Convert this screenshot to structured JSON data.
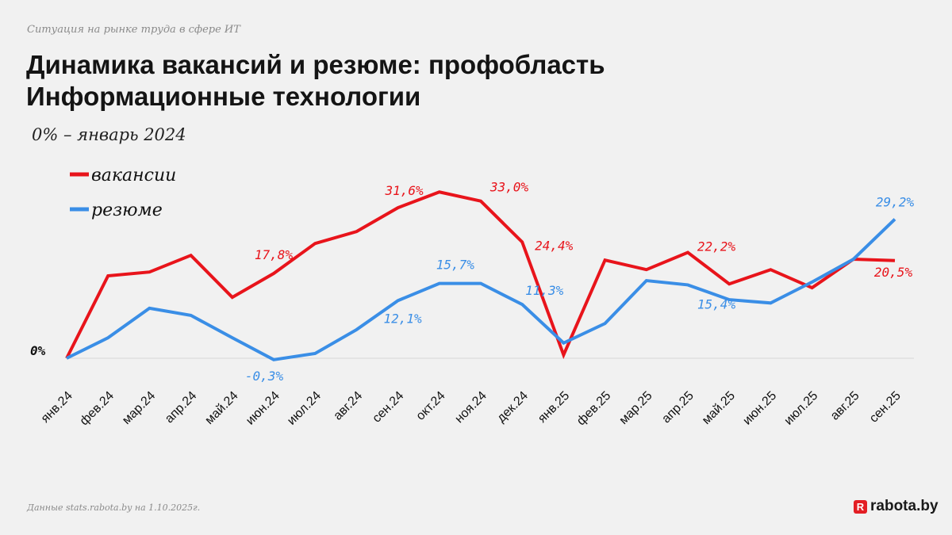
{
  "header": {
    "kicker": "Ситуация на рынке труда в сфере ИТ",
    "title_line1": "Динамика вакансий и резюме: профобласть",
    "title_line2": "Информационные технологии",
    "subtitle": "0% – январь 2024"
  },
  "footer": {
    "source": "Данные stats.rabota.by на 1.10.2025г.",
    "logo_letter": "R",
    "logo_text": "rabota.by"
  },
  "chart_data": {
    "type": "line",
    "title": "Динамика вакансий и резюме: профобласть Информационные технологии",
    "xlabel": "",
    "ylabel": "",
    "ylim": [
      -5,
      40
    ],
    "grid": false,
    "legend": "top-left",
    "zero_label": "0%",
    "categories": [
      "янв.24",
      "фев.24",
      "мар.24",
      "апр.24",
      "май.24",
      "июн.24",
      "июл.24",
      "авг.24",
      "сен.24",
      "окт.24",
      "ноя.24",
      "дек.24",
      "янв.25",
      "фев.25",
      "мар.25",
      "апр.25",
      "май.25",
      "июн.25",
      "июл.25",
      "авг.25",
      "сен.25"
    ],
    "series": [
      {
        "name": "вакансии",
        "color": "#e8141b",
        "values": [
          0,
          17.3,
          18.1,
          21.6,
          12.8,
          17.8,
          24.1,
          26.6,
          31.6,
          34.9,
          33.0,
          24.4,
          0.7,
          20.6,
          18.6,
          22.2,
          15.6,
          18.6,
          14.8,
          20.8,
          20.5
        ]
      },
      {
        "name": "резюме",
        "color": "#3a8ee6",
        "values": [
          0,
          4.3,
          10.5,
          9.0,
          4.3,
          -0.3,
          1.0,
          6.0,
          12.1,
          15.7,
          15.7,
          11.3,
          3.2,
          7.3,
          16.3,
          15.4,
          12.3,
          11.6,
          16.0,
          20.8,
          29.2
        ]
      }
    ],
    "annotations": [
      {
        "series": 0,
        "index": 5,
        "text": "17,8%"
      },
      {
        "series": 0,
        "index": 8,
        "text": "31,6%"
      },
      {
        "series": 0,
        "index": 10,
        "text": "33,0%"
      },
      {
        "series": 0,
        "index": 11,
        "text": "24,4%"
      },
      {
        "series": 0,
        "index": 15,
        "text": "22,2%"
      },
      {
        "series": 0,
        "index": 20,
        "text": "20,5%"
      },
      {
        "series": 1,
        "index": 5,
        "text": "-0,3%"
      },
      {
        "series": 1,
        "index": 8,
        "text": "12,1%"
      },
      {
        "series": 1,
        "index": 9,
        "text": "15,7%"
      },
      {
        "series": 1,
        "index": 11,
        "text": "11,3%"
      },
      {
        "series": 1,
        "index": 15,
        "text": "15,4%"
      },
      {
        "series": 1,
        "index": 20,
        "text": "29,2%"
      }
    ]
  }
}
